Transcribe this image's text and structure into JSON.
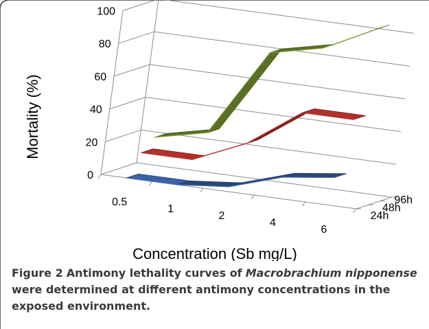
{
  "chart_data": {
    "type": "line",
    "style": "3d",
    "ylabel": "Mortality (%)",
    "xlabel": "Concentration (Sb mg/L)",
    "categories": [
      "0.5",
      "1",
      "2",
      "4",
      "6"
    ],
    "y_ticks": [
      "0",
      "20",
      "40",
      "60",
      "80",
      "100"
    ],
    "ylim": [
      0,
      100
    ],
    "depth_labels": [
      "96h",
      "48h",
      "24h"
    ],
    "series": [
      {
        "name": "24h",
        "values": [
          0,
          0,
          3,
          13,
          17
        ],
        "color": "#3a62a5"
      },
      {
        "name": "48h",
        "values": [
          13,
          13,
          27,
          50,
          50
        ],
        "color": "#b0312c"
      },
      {
        "name": "96h",
        "values": [
          20,
          27,
          80,
          87,
          103
        ],
        "color": "#7d9a34"
      }
    ]
  },
  "caption": {
    "label": "Figure 2",
    "text_before": "Antimony lethality curves of",
    "species": "Macrobrachium nipponense",
    "text_after": "were determined at different antimony concentrations in the exposed environment."
  }
}
